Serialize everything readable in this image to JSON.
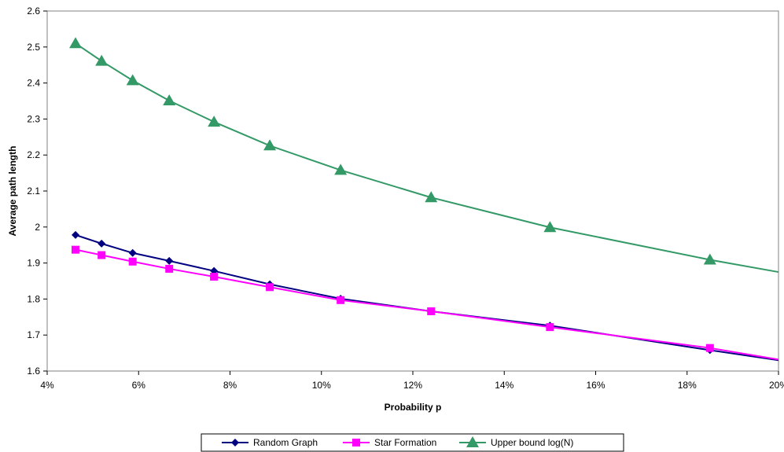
{
  "chart_data": {
    "type": "line",
    "title": "",
    "xlabel": "Probability p",
    "ylabel": "Average path length",
    "xlim": [
      0.04,
      0.2
    ],
    "ylim": [
      1.6,
      2.6
    ],
    "x_ticks": [
      {
        "value": 0.04,
        "label": "4%"
      },
      {
        "value": 0.06,
        "label": "6%"
      },
      {
        "value": 0.08,
        "label": "8%"
      },
      {
        "value": 0.1,
        "label": "10%"
      },
      {
        "value": 0.12,
        "label": "12%"
      },
      {
        "value": 0.14,
        "label": "14%"
      },
      {
        "value": 0.16,
        "label": "16%"
      },
      {
        "value": 0.18,
        "label": "18%"
      },
      {
        "value": 0.2,
        "label": "20%"
      }
    ],
    "y_ticks": [
      {
        "value": 1.6,
        "label": "1.6"
      },
      {
        "value": 1.7,
        "label": "1.7"
      },
      {
        "value": 1.8,
        "label": "1.8"
      },
      {
        "value": 1.9,
        "label": "1.9"
      },
      {
        "value": 2.0,
        "label": "2"
      },
      {
        "value": 2.1,
        "label": "2.1"
      },
      {
        "value": 2.2,
        "label": "2.2"
      },
      {
        "value": 2.3,
        "label": "2.3"
      },
      {
        "value": 2.4,
        "label": "2.4"
      },
      {
        "value": 2.5,
        "label": "2.5"
      },
      {
        "value": 2.6,
        "label": "2.6"
      }
    ],
    "grid": false,
    "legend_position": "bottom",
    "series": [
      {
        "name": "Random Graph",
        "color": "#000080",
        "marker": "diamond",
        "x": [
          0.0462,
          0.0519,
          0.0587,
          0.0667,
          0.0765,
          0.0887,
          0.1042,
          0.124,
          0.15,
          0.185
        ],
        "y": [
          1.978,
          1.954,
          1.928,
          1.906,
          1.878,
          1.841,
          1.801,
          1.766,
          1.726,
          1.658
        ],
        "line_end": {
          "x": 0.2,
          "y": 1.63
        }
      },
      {
        "name": "Star Formation",
        "color": "#FF00FF",
        "marker": "square",
        "x": [
          0.0462,
          0.0519,
          0.0587,
          0.0667,
          0.0765,
          0.0887,
          0.1042,
          0.124,
          0.15,
          0.185
        ],
        "y": [
          1.937,
          1.922,
          1.904,
          1.884,
          1.862,
          1.833,
          1.797,
          1.766,
          1.722,
          1.664
        ],
        "line_end": {
          "x": 0.2,
          "y": 1.632
        }
      },
      {
        "name": "Upper bound log(N)",
        "color": "#339966",
        "marker": "triangle",
        "x": [
          0.0462,
          0.0519,
          0.0587,
          0.0667,
          0.0765,
          0.0887,
          0.1042,
          0.124,
          0.15,
          0.185
        ],
        "y": [
          2.51,
          2.461,
          2.407,
          2.351,
          2.292,
          2.226,
          2.158,
          2.082,
          1.999,
          1.909
        ],
        "line_end": {
          "x": 0.2,
          "y": 1.875
        }
      }
    ]
  }
}
